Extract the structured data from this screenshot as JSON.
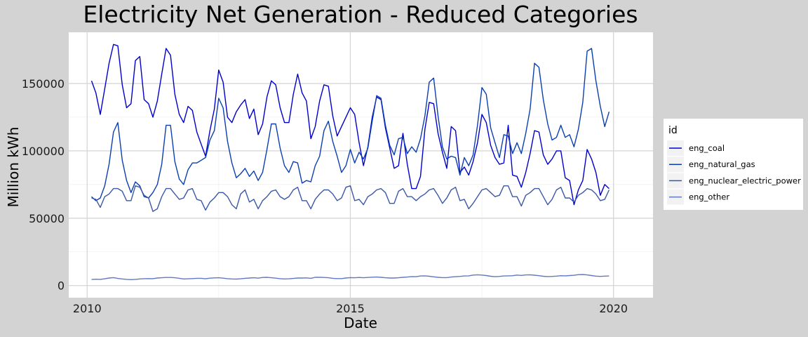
{
  "chart_data": {
    "type": "line",
    "title": "Electricity Net Generation - Reduced Categories",
    "xlabel": "Date",
    "ylabel": "Million kWh",
    "x_range": [
      2009.65,
      2020.75
    ],
    "ylim": [
      -9000,
      188000
    ],
    "x_ticks": [
      2010,
      2015,
      2020
    ],
    "x_tick_labels": [
      "2010",
      "2015",
      "2020"
    ],
    "y_ticks": [
      0,
      50000,
      100000,
      150000
    ],
    "y_tick_labels": [
      "0",
      "50000",
      "100000",
      "150000"
    ],
    "grid": true,
    "legend_title": "id",
    "legend_position": "right",
    "x_start_year": 2010.083,
    "x_step_years": 0.08333,
    "series": [
      {
        "name": "eng_coal",
        "color": "#0000cd",
        "values": [
          152000,
          143000,
          127000,
          146000,
          165000,
          179000,
          178000,
          149000,
          132000,
          135000,
          167000,
          170000,
          138000,
          135000,
          125000,
          137000,
          157000,
          176000,
          171000,
          142000,
          127000,
          121000,
          133000,
          130000,
          114000,
          105000,
          96000,
          115000,
          131000,
          160000,
          151000,
          125000,
          121000,
          129000,
          134000,
          138000,
          124000,
          131000,
          112000,
          120000,
          140000,
          152000,
          149000,
          132000,
          121000,
          121000,
          142000,
          157000,
          143000,
          137000,
          109000,
          118000,
          137000,
          149000,
          148000,
          126000,
          111000,
          118000,
          125000,
          132000,
          127000,
          106000,
          89000,
          103000,
          125000,
          140000,
          138000,
          117000,
          102000,
          87000,
          89000,
          113000,
          90000,
          72000,
          72000,
          81000,
          116000,
          136000,
          135000,
          113000,
          99000,
          87000,
          118000,
          115000,
          84000,
          88000,
          82000,
          92000,
          106000,
          127000,
          121000,
          104000,
          95000,
          90000,
          91000,
          119000,
          82000,
          81000,
          73000,
          84000,
          98000,
          115000,
          114000,
          97000,
          90000,
          94000,
          100000,
          100000,
          80000,
          78000,
          60000,
          71000,
          78000,
          101000,
          94000,
          84000,
          67000,
          75000,
          72000
        ]
      },
      {
        "name": "eng_natural_gas",
        "color": "#0b3fb0",
        "values": [
          66000,
          63000,
          65000,
          74000,
          90000,
          114000,
          121000,
          93000,
          78000,
          69000,
          77000,
          74000,
          66000,
          65000,
          69000,
          75000,
          90000,
          119000,
          119000,
          92000,
          79000,
          75000,
          86000,
          91000,
          91000,
          93000,
          95000,
          108000,
          115000,
          139000,
          132000,
          107000,
          91000,
          80000,
          83000,
          87000,
          81000,
          85000,
          78000,
          84000,
          101000,
          120000,
          120000,
          102000,
          89000,
          84000,
          92000,
          91000,
          76000,
          78000,
          77000,
          89000,
          96000,
          115000,
          122000,
          107000,
          96000,
          84000,
          89000,
          101000,
          91000,
          99000,
          94000,
          102000,
          122000,
          141000,
          139000,
          119000,
          104000,
          97000,
          109000,
          110000,
          98000,
          103000,
          99000,
          109000,
          126000,
          151000,
          154000,
          126000,
          103000,
          94000,
          96000,
          95000,
          82000,
          95000,
          89000,
          97000,
          119000,
          147000,
          142000,
          117000,
          106000,
          95000,
          112000,
          111000,
          98000,
          106000,
          98000,
          113000,
          131000,
          165000,
          162000,
          138000,
          120000,
          108000,
          110000,
          119000,
          110000,
          112000,
          103000,
          116000,
          136000,
          174000,
          176000,
          152000,
          133000,
          118000,
          129000
        ]
      },
      {
        "name": "eng_nuclear_electric_power",
        "color": "#3a57a8",
        "values": [
          65000,
          64000,
          58000,
          66000,
          68000,
          72000,
          72000,
          70000,
          63000,
          63000,
          74000,
          73000,
          67000,
          65000,
          55000,
          57000,
          66000,
          72000,
          72000,
          68000,
          64000,
          65000,
          71000,
          72000,
          64000,
          63000,
          56000,
          62000,
          65000,
          69000,
          69000,
          66000,
          60000,
          57000,
          68000,
          71000,
          62000,
          64000,
          57000,
          63000,
          66000,
          70000,
          71000,
          66000,
          64000,
          66000,
          71000,
          73000,
          63000,
          63000,
          57000,
          64000,
          68000,
          71000,
          71000,
          68000,
          63000,
          65000,
          73000,
          74000,
          63000,
          64000,
          60000,
          66000,
          68000,
          71000,
          72000,
          69000,
          61000,
          61000,
          70000,
          72000,
          66000,
          66000,
          63000,
          66000,
          68000,
          71000,
          72000,
          67000,
          61000,
          65000,
          71000,
          73000,
          63000,
          64000,
          57000,
          61000,
          66000,
          71000,
          72000,
          69000,
          66000,
          67000,
          74000,
          74000,
          66000,
          66000,
          59000,
          67000,
          69000,
          72000,
          72000,
          66000,
          60000,
          64000,
          71000,
          73000,
          65000,
          65000,
          62000,
          67000,
          69000,
          72000,
          71000,
          68000,
          63000,
          64000,
          71000
        ]
      },
      {
        "name": "eng_other",
        "color": "#6079c2",
        "values": [
          4500,
          4700,
          4600,
          5000,
          5600,
          5900,
          5300,
          4900,
          4600,
          4400,
          4600,
          4900,
          5100,
          5200,
          5100,
          5600,
          5800,
          6000,
          6000,
          5800,
          5400,
          4900,
          5000,
          5200,
          5400,
          5400,
          5000,
          5500,
          5700,
          5800,
          5500,
          5100,
          4900,
          4800,
          5000,
          5400,
          5600,
          5800,
          5500,
          6000,
          6100,
          5800,
          5500,
          5100,
          4900,
          5000,
          5300,
          5600,
          5600,
          5700,
          5400,
          6100,
          6100,
          6000,
          5800,
          5400,
          5200,
          5200,
          5600,
          5900,
          5800,
          6000,
          5800,
          6000,
          6200,
          6300,
          6100,
          5800,
          5600,
          5600,
          5800,
          6100,
          6300,
          6700,
          6600,
          7100,
          7200,
          6900,
          6500,
          6100,
          5900,
          5900,
          6300,
          6600,
          6800,
          7100,
          7200,
          7800,
          8000,
          7800,
          7400,
          6900,
          6600,
          6800,
          7100,
          7200,
          7300,
          7800,
          7500,
          7900,
          8000,
          7700,
          7300,
          6900,
          6700,
          6800,
          7000,
          7300,
          7200,
          7400,
          7600,
          8100,
          8200,
          7900,
          7400,
          7000,
          6800,
          7000,
          7100
        ]
      }
    ]
  }
}
